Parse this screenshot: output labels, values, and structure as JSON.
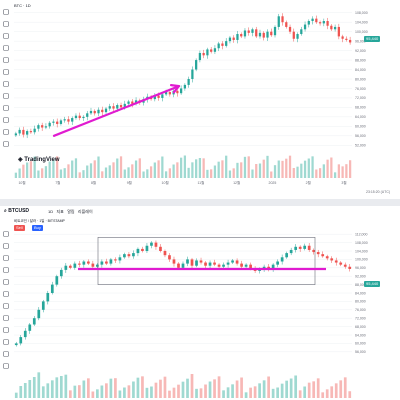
{
  "colors": {
    "up": "#26a69a",
    "down": "#ef5350",
    "up_vol": "#9fd9d1",
    "down_vol": "#f7b8b6",
    "magenta": "#e01bd0",
    "grid": "#eef0f3",
    "axis_text": "#6a6d78",
    "tool_icon": "#5d606b",
    "last_price_badge": "#26a69a",
    "box_stroke": "#6a6d78"
  },
  "top_panel": {
    "symbol": "BTC",
    "interval": "1D",
    "last_price_label": "95,440",
    "logo_text": "TradingView",
    "timestamp": "23:15:20 (UTC)",
    "toolbar_icons": [
      "crosshair-icon",
      "trend-line-icon",
      "fib-icon",
      "brush-icon",
      "text-icon",
      "pattern-icon",
      "measure-icon",
      "zoom-icon",
      "magnet-icon",
      "lock-icon",
      "eye-icon",
      "trash-icon"
    ],
    "x_ticks": [
      "10월",
      "7월",
      "8월",
      "9월",
      "10월",
      "11월",
      "12월",
      "2025",
      "2월",
      "3월"
    ],
    "y_ticks": [
      "108,000",
      "104,000",
      "100,000",
      "96,000",
      "92,000",
      "88,000",
      "84,000",
      "80,000",
      "76,000",
      "72,000",
      "68,000",
      "64,000",
      "60,000",
      "56,000",
      "52,000"
    ]
  },
  "bottom_panel": {
    "symbol": "BTCUSD",
    "toolbar_items": [
      "1D",
      "지표",
      "알림",
      "리플레이"
    ],
    "indicator_line": "비트코인 / 달러 · 1일 · BITSTAMP",
    "buy_label": "Buy",
    "sell_label": "Sell",
    "last_price_label": "95,440",
    "toolbar_icons": [
      "crosshair-icon",
      "trend-line-icon",
      "fib-icon",
      "brush-icon",
      "text-icon",
      "pattern-icon",
      "measure-icon",
      "zoom-icon",
      "magnet-icon",
      "lock-icon",
      "eye-icon",
      "trash-icon"
    ],
    "y_ticks": [
      "112,000",
      "108,000",
      "104,000",
      "100,000",
      "96,000",
      "92,000",
      "88,000",
      "84,000",
      "80,000",
      "76,000",
      "72,000",
      "68,000",
      "64,000",
      "60,000",
      "56,000"
    ]
  },
  "chart_data": [
    {
      "type": "candlestick",
      "title": "BTC · 1D",
      "ylim": [
        50000,
        110000
      ],
      "closes": [
        57000,
        58500,
        56500,
        58000,
        57500,
        59000,
        60500,
        59500,
        60000,
        61500,
        62000,
        61000,
        62500,
        63000,
        62000,
        63500,
        64500,
        63500,
        64000,
        65500,
        66500,
        65500,
        67000,
        66000,
        67500,
        68500,
        67500,
        69000,
        68000,
        69500,
        70500,
        69500,
        71000,
        70000,
        71500,
        72500,
        71500,
        73000,
        72000,
        73500,
        74500,
        73500,
        75000,
        74000,
        76000,
        77500,
        80000,
        84000,
        88000,
        91000,
        90000,
        92500,
        91500,
        93000,
        95000,
        94000,
        96000,
        97500,
        96500,
        99000,
        98000,
        100500,
        99500,
        101000,
        98000,
        99500,
        97500,
        100000,
        98500,
        102000,
        106500,
        104000,
        102000,
        100000,
        97000,
        99000,
        101000,
        103000,
        104500,
        105500,
        104000,
        103500,
        104500,
        102500,
        101000,
        102000,
        98000,
        97000,
        96500,
        95440
      ],
      "annotations": [
        {
          "type": "trend-arrow",
          "from_price": 56000,
          "to_price": 77000
        }
      ]
    },
    {
      "type": "candlestick",
      "title": "BTCUSD · 1D",
      "ylim": [
        54000,
        114000
      ],
      "horizontal_line_price": 95440,
      "closes": [
        60000,
        63000,
        66000,
        69000,
        72000,
        76000,
        80000,
        84000,
        88000,
        92000,
        95000,
        97000,
        96000,
        98000,
        97500,
        99000,
        98000,
        96500,
        97500,
        99000,
        98000,
        100000,
        99500,
        101000,
        102500,
        101500,
        103000,
        105000,
        104000,
        106500,
        108000,
        106000,
        104000,
        102000,
        100000,
        98000,
        96000,
        98000,
        100000,
        97000,
        99500,
        98500,
        97000,
        98500,
        97500,
        96500,
        97500,
        98500,
        99500,
        98000,
        96500,
        97500,
        95500,
        94500,
        95500,
        96500,
        95000,
        97500,
        99000,
        101000,
        103000,
        104500,
        106000,
        105000,
        106500,
        104500,
        103500,
        102500,
        101500,
        100500,
        99500,
        98500,
        97500,
        96500,
        95440
      ],
      "annotations": [
        {
          "type": "range-box",
          "price_top": 110500,
          "price_bottom": 88000
        }
      ]
    }
  ]
}
